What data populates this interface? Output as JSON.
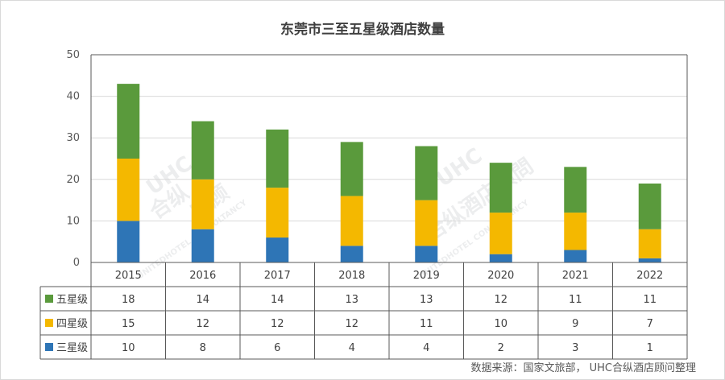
{
  "title": "东莞市三至五星级酒店数量",
  "source": "数据来源：国家文旅部， UHC合纵酒店顾问整理",
  "watermarks": [
    "UHC",
    "合纵",
    "店顾",
    "UNITEDHOTEL CONSULTANCY",
    "UHC",
    "合纵酒店顾問",
    "UNITEDHOTEL CONSULTANCY"
  ],
  "chart_data": {
    "type": "bar",
    "stacked": true,
    "categories": [
      "2015",
      "2016",
      "2017",
      "2018",
      "2019",
      "2020",
      "2021",
      "2022"
    ],
    "series": [
      {
        "name": "三星级",
        "color": "#2e75b6",
        "values": [
          10,
          8,
          6,
          4,
          4,
          2,
          3,
          1
        ]
      },
      {
        "name": "四星级",
        "color": "#f4b800",
        "values": [
          15,
          12,
          12,
          12,
          11,
          10,
          9,
          7
        ]
      },
      {
        "name": "五星级",
        "color": "#5a9a3c",
        "values": [
          18,
          14,
          14,
          13,
          13,
          12,
          11,
          11
        ]
      }
    ],
    "table_row_order": [
      "五星级",
      "四星级",
      "三星级"
    ],
    "ylim": [
      0,
      50
    ],
    "yticks": [
      "0",
      "10",
      "20",
      "30",
      "40",
      "50"
    ],
    "grid": true,
    "legend": "data-table"
  }
}
